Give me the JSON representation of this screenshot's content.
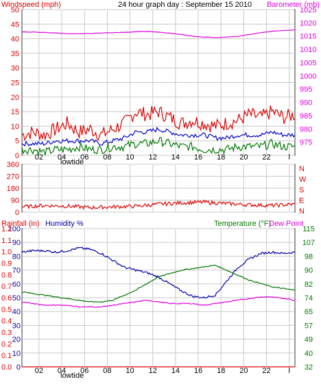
{
  "header": {
    "left_title": "Windspeed (mph)",
    "center_title": "24 hour graph day : September 15 2010",
    "right_title": "Barometer (mb)"
  },
  "bottom_header": {
    "rainfall": "Rainfall (in)",
    "humidity": "Humidity %",
    "temperature": "Temperature (°F)",
    "dewpoint": "Dew Point"
  },
  "x_axis": {
    "hour_ticks": [
      "02",
      "04",
      "06",
      "08",
      "10",
      "12",
      "14",
      "16",
      "18",
      "20",
      "22",
      "l"
    ],
    "lowtide_label": "lowtide"
  },
  "colors": {
    "wind_gust": "#dd0000",
    "wind_avg": "#0000cc",
    "wind_low": "#007700",
    "barometer": "#dd00dd",
    "direction": "#dd0000",
    "humidity": "#0000aa",
    "temperature": "#007700",
    "dewpoint": "#dd00dd",
    "rainfall": "#dd0000",
    "grid": "#c8c8c8"
  },
  "chart_data": [
    {
      "type": "line",
      "panel": "wind",
      "x_unit": "hour",
      "xlim": [
        0,
        24
      ],
      "ylim": [
        0,
        50
      ],
      "y_ticks": [
        "0",
        "5",
        "10",
        "15",
        "20",
        "25",
        "30",
        "35",
        "40",
        "45",
        "50"
      ],
      "y2lim": [
        970,
        1025
      ],
      "y2_ticks": [
        "975",
        "980",
        "985",
        "990",
        "995",
        "1000",
        "1005",
        "1010",
        "1015",
        "1020",
        "1025"
      ],
      "series": [
        {
          "key": "gust",
          "axis": "y",
          "x": [
            0,
            1,
            2,
            3,
            4,
            5,
            6,
            7,
            8,
            9,
            10,
            11,
            12,
            13,
            14,
            15,
            16,
            17,
            18,
            19,
            20,
            21,
            22,
            23,
            24
          ],
          "values": [
            7,
            8,
            7,
            9,
            11,
            8,
            9,
            7,
            9,
            11,
            15,
            14,
            15,
            13,
            11,
            12,
            11,
            10,
            11,
            12,
            14,
            13,
            15,
            13,
            14
          ]
        },
        {
          "key": "average",
          "axis": "y",
          "x": [
            0,
            1,
            2,
            3,
            4,
            5,
            6,
            7,
            8,
            9,
            10,
            11,
            12,
            13,
            14,
            15,
            16,
            17,
            18,
            19,
            20,
            21,
            22,
            23,
            24
          ],
          "values": [
            4,
            4,
            4,
            5,
            5,
            5,
            5,
            4,
            5,
            6,
            8,
            8,
            9,
            8,
            7,
            7,
            7,
            6,
            6,
            7,
            7,
            7,
            8,
            7,
            7
          ]
        },
        {
          "key": "low",
          "axis": "y",
          "x": [
            0,
            1,
            2,
            3,
            4,
            5,
            6,
            7,
            8,
            9,
            10,
            11,
            12,
            13,
            14,
            15,
            16,
            17,
            18,
            19,
            20,
            21,
            22,
            23,
            24
          ],
          "values": [
            2,
            2,
            1,
            2,
            2,
            3,
            2,
            2,
            3,
            3,
            4,
            4,
            5,
            4,
            3,
            3,
            2,
            2,
            2,
            3,
            3,
            3,
            4,
            3,
            3
          ]
        },
        {
          "key": "barometer",
          "axis": "y2",
          "x": [
            0,
            2,
            4,
            6,
            8,
            10,
            11,
            13,
            15,
            16,
            17,
            18,
            19,
            20,
            21,
            22,
            23,
            24
          ],
          "values": [
            1016.6,
            1016.4,
            1015.9,
            1016.0,
            1016.3,
            1016.6,
            1016.8,
            1016.1,
            1015.0,
            1014.6,
            1014.5,
            1014.6,
            1014.9,
            1015.6,
            1016.3,
            1016.8,
            1017.1,
            1017.4
          ]
        }
      ]
    },
    {
      "type": "line",
      "panel": "direction",
      "x_unit": "hour",
      "xlim": [
        0,
        24
      ],
      "ylim": [
        0,
        360
      ],
      "y_ticks": [
        "0",
        "90",
        "180",
        "270",
        "360"
      ],
      "compass_labels": [
        "N",
        "W",
        "S",
        "E",
        "N"
      ],
      "series": [
        {
          "key": "direction",
          "x": [
            0,
            2,
            4,
            6,
            8,
            10,
            12,
            14,
            16,
            18,
            20,
            22,
            24
          ],
          "values": [
            40,
            50,
            45,
            35,
            40,
            45,
            60,
            70,
            75,
            65,
            55,
            50,
            60
          ]
        }
      ]
    },
    {
      "type": "line",
      "panel": "atmosphere",
      "x_unit": "hour",
      "xlim": [
        0,
        24
      ],
      "ylim": [
        0,
        100
      ],
      "y_ticks": [
        "0",
        "10",
        "20",
        "30",
        "40",
        "50",
        "60",
        "70",
        "80",
        "90",
        "100"
      ],
      "rain_ticks": [
        "0.0",
        "0.1",
        "0.2",
        "0.3",
        "0.4",
        "0.5",
        "0.6",
        "0.7",
        "0.8",
        "0.9",
        "1.0",
        "1.1",
        "1.2"
      ],
      "temp_ticks": [
        "32",
        "40",
        "49",
        "57",
        "65",
        "74",
        "82",
        "90",
        "98",
        "107",
        "115"
      ],
      "series": [
        {
          "key": "humidity",
          "axis": "percent",
          "x": [
            0,
            1,
            2,
            3,
            4,
            5,
            6,
            7,
            8,
            9,
            10,
            11,
            12,
            13,
            14,
            15,
            16,
            17,
            18,
            19,
            20,
            21,
            22,
            23,
            24
          ],
          "values": [
            83,
            84,
            84,
            83,
            84,
            86,
            85,
            82,
            77,
            72,
            70,
            68,
            65,
            60,
            55,
            51,
            50,
            52,
            62,
            72,
            78,
            82,
            83,
            82,
            83
          ]
        },
        {
          "key": "temperature",
          "axis": "temp_f",
          "x": [
            0,
            1,
            2,
            3,
            4,
            5,
            6,
            7,
            8,
            9,
            10,
            11,
            12,
            13,
            14,
            15,
            16,
            17,
            18,
            19,
            20,
            21,
            22,
            23,
            24
          ],
          "values": [
            77,
            76,
            75,
            74,
            73,
            72,
            71,
            71,
            72,
            75,
            78,
            82,
            86,
            88,
            90,
            91,
            92,
            93,
            90,
            87,
            84,
            82,
            80,
            79,
            78
          ]
        },
        {
          "key": "dewpoint",
          "axis": "temp_f",
          "x": [
            0,
            1,
            2,
            3,
            4,
            5,
            6,
            7,
            8,
            9,
            10,
            11,
            12,
            13,
            14,
            15,
            16,
            17,
            18,
            19,
            20,
            21,
            22,
            23,
            24
          ],
          "values": [
            71,
            70,
            69,
            69,
            69,
            68,
            68,
            68,
            69,
            70,
            71,
            72,
            71,
            70,
            70,
            70,
            69,
            70,
            71,
            72,
            73,
            74,
            74,
            73,
            72
          ]
        },
        {
          "key": "rainfall",
          "axis": "rain_in",
          "x": [
            0,
            24
          ],
          "values": [
            0.0,
            0.0
          ]
        }
      ]
    }
  ]
}
